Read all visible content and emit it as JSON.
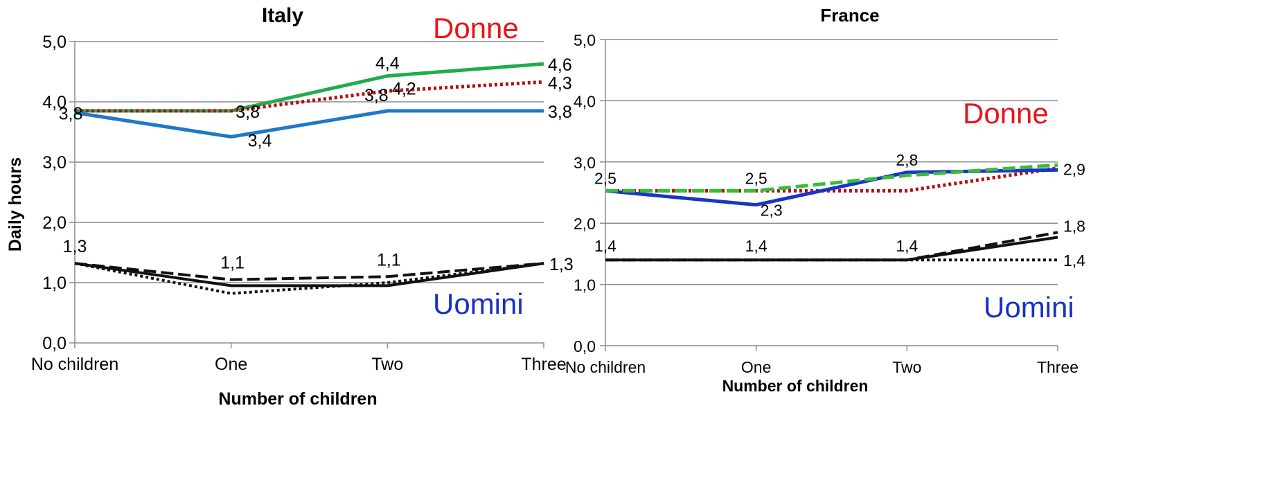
{
  "chart_data": [
    {
      "type": "line",
      "title": "Italy",
      "xlabel": "Number of children",
      "ylabel": "Daily hours",
      "categories": [
        "No children",
        "One",
        "Two",
        "Three"
      ],
      "ylim": [
        0,
        5
      ],
      "yticks": [
        "0,0",
        "1,0",
        "2,0",
        "3,0",
        "4,0",
        "5,0"
      ],
      "grid": true,
      "group_labels": [
        {
          "text": "Donne",
          "color": "#e8141b"
        },
        {
          "text": "Uomini",
          "color": "#1530c8"
        }
      ],
      "series": [
        {
          "values": [
            3.85,
            3.85,
            4.43,
            4.63
          ],
          "color": "#1fad4b",
          "dash": "solid",
          "width": 5
        },
        {
          "values": [
            3.85,
            3.85,
            4.18,
            4.33
          ],
          "color": "#b01116",
          "dash": "dot",
          "width": 5
        },
        {
          "values": [
            3.82,
            3.42,
            3.85,
            3.85
          ],
          "color": "#1f78c8",
          "dash": "solid",
          "width": 5
        },
        {
          "values": [
            1.32,
            1.05,
            1.1,
            1.32
          ],
          "color": "#111111",
          "dash": "dash",
          "width": 4
        },
        {
          "values": [
            1.32,
            0.95,
            0.95,
            1.32
          ],
          "color": "#111111",
          "dash": "solid",
          "width": 4
        },
        {
          "values": [
            1.32,
            0.82,
            1.0,
            1.32
          ],
          "color": "#111111",
          "dash": "dot",
          "width": 4
        }
      ],
      "data_labels": [
        {
          "text": "3,8",
          "x": 0,
          "y": 3.82
        },
        {
          "text": "3,8",
          "x": 1,
          "y": 3.85
        },
        {
          "text": "3,4",
          "x": 1,
          "y": 3.42
        },
        {
          "text": "4,4",
          "x": 2,
          "y": 4.43
        },
        {
          "text": "3,8",
          "x": 2,
          "y": 3.85
        },
        {
          "text": "4,2",
          "x": 2,
          "y": 4.18
        },
        {
          "text": "4,6",
          "x": 3,
          "y": 4.63
        },
        {
          "text": "4,3",
          "x": 3,
          "y": 4.33
        },
        {
          "text": "3,8",
          "x": 3,
          "y": 3.85
        },
        {
          "text": "1,3",
          "x": 0,
          "y": 1.32
        },
        {
          "text": "1,1",
          "x": 1,
          "y": 1.05
        },
        {
          "text": "1,1",
          "x": 2,
          "y": 1.1
        },
        {
          "text": "1,3",
          "x": 3,
          "y": 1.32
        }
      ]
    },
    {
      "type": "line",
      "title": "France",
      "xlabel": "Number of children",
      "ylabel": "",
      "categories": [
        "No children",
        "One",
        "Two",
        "Three"
      ],
      "ylim": [
        0,
        5
      ],
      "yticks": [
        "0,0",
        "1,0",
        "2,0",
        "3,0",
        "4,0",
        "5,0"
      ],
      "grid": true,
      "group_labels": [
        {
          "text": "Donne",
          "color": "#e8141b"
        },
        {
          "text": "Uomini",
          "color": "#1530c8"
        }
      ],
      "series": [
        {
          "values": [
            2.53,
            2.53,
            2.53,
            2.9
          ],
          "color": "#b01116",
          "dash": "dot",
          "width": 5
        },
        {
          "values": [
            2.53,
            2.3,
            2.83,
            2.87
          ],
          "color": "#1a33c9",
          "dash": "solid",
          "width": 5
        },
        {
          "values": [
            2.53,
            2.53,
            2.78,
            2.95
          ],
          "color": "#3cba3c",
          "dash": "dash",
          "width": 5
        },
        {
          "values": [
            1.4,
            1.4,
            1.4,
            1.4
          ],
          "color": "#111111",
          "dash": "dot",
          "width": 4
        },
        {
          "values": [
            1.4,
            1.4,
            1.4,
            1.77
          ],
          "color": "#111111",
          "dash": "solid",
          "width": 4
        },
        {
          "values": [
            1.4,
            1.4,
            1.4,
            1.85
          ],
          "color": "#111111",
          "dash": "dash",
          "width": 4
        }
      ],
      "data_labels": [
        {
          "text": "2,5",
          "x": 0,
          "y": 2.53
        },
        {
          "text": "2,5",
          "x": 1,
          "y": 2.53
        },
        {
          "text": "2,3",
          "x": 1,
          "y": 2.3
        },
        {
          "text": "2,8",
          "x": 2,
          "y": 2.83
        },
        {
          "text": "2,9",
          "x": 3,
          "y": 2.9
        },
        {
          "text": "1,4",
          "x": 0,
          "y": 1.4
        },
        {
          "text": "1,4",
          "x": 1,
          "y": 1.4
        },
        {
          "text": "1,4",
          "x": 2,
          "y": 1.4
        },
        {
          "text": "1,8",
          "x": 3,
          "y": 1.85
        },
        {
          "text": "1,4",
          "x": 3,
          "y": 1.4
        }
      ]
    }
  ]
}
